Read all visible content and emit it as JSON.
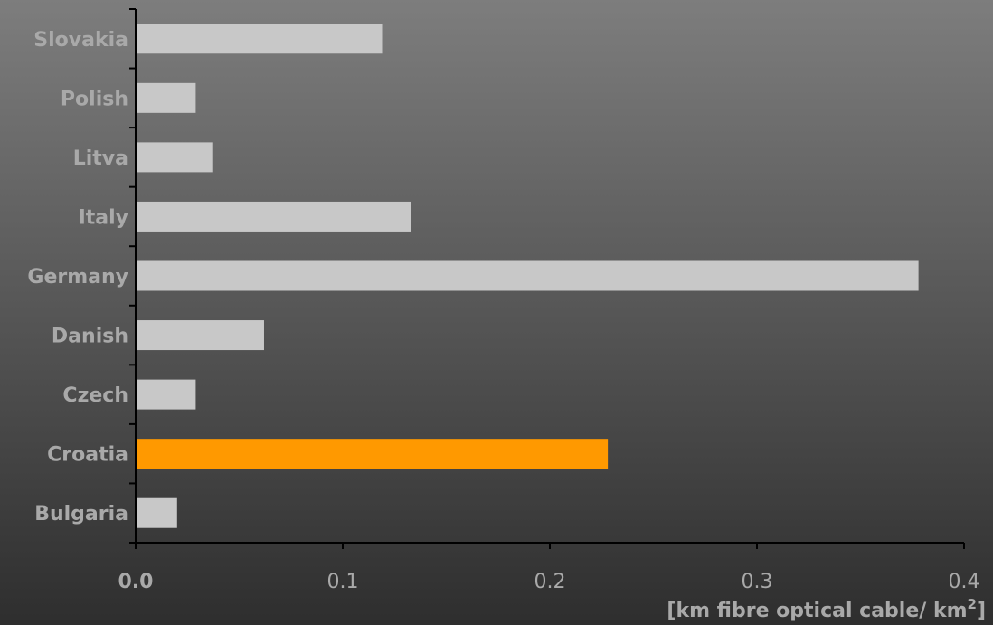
{
  "chart_data": {
    "type": "bar",
    "orientation": "horizontal",
    "categories": [
      "Bulgaria",
      "Croatia",
      "Czech",
      "Danish",
      "Germany",
      "Italy",
      "Litva",
      "Polish",
      "Slovakia"
    ],
    "values": [
      0.02,
      0.228,
      0.029,
      0.062,
      0.378,
      0.133,
      0.037,
      0.029,
      0.119
    ],
    "highlight_category": "Croatia",
    "xlim": [
      0,
      0.4
    ],
    "x_ticks": [
      "0.0",
      "0.1",
      "0.2",
      "0.3",
      "0.4"
    ],
    "x_tick_values": [
      0,
      0.1,
      0.2,
      0.3,
      0.4
    ],
    "xlabel": {
      "main": "[km fibre optical cable/ km",
      "superscript": "2",
      "suffix": "]"
    },
    "grid": false,
    "legend": "none",
    "colors": {
      "bar": "#c8c8c8",
      "highlight": "#ff9900",
      "axis": "#000000",
      "text": "#a9a9a9"
    }
  }
}
